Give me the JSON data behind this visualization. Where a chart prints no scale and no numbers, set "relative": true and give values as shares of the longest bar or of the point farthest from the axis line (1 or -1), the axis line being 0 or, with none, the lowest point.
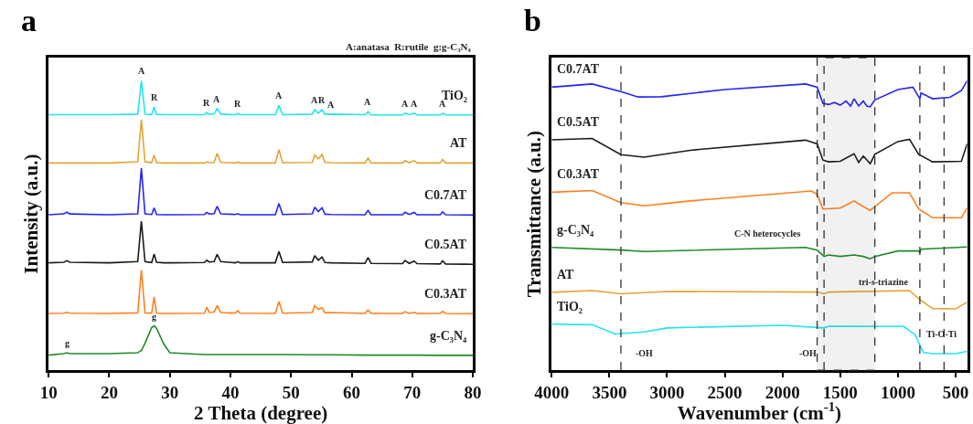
{
  "chart_data": [
    {
      "type": "line",
      "relative": true,
      "tick_labels": "x",
      "xlabel": "2 Theta (degree)",
      "ylabel": "Intensity (a.u.)",
      "xlim": [
        10,
        80
      ],
      "xticks": [
        10,
        20,
        30,
        40,
        50,
        60,
        70,
        80
      ],
      "x": [
        10,
        12.5,
        13,
        13.5,
        20,
        24.7,
        25.3,
        25.9,
        27.0,
        27.4,
        27.8,
        29.0,
        30.0,
        35.7,
        36.1,
        36.5,
        37.3,
        37.8,
        38.4,
        40.8,
        41.2,
        41.6,
        47.4,
        48.0,
        48.6,
        53.5,
        53.9,
        54.5,
        55.1,
        55.6,
        56.6,
        62.2,
        62.7,
        63.2,
        68.4,
        68.8,
        69.5,
        70.3,
        70.8,
        74.6,
        75.0,
        75.5,
        80
      ],
      "series": [
        {
          "name": "TiO₂",
          "color": "#22e6ee",
          "values": [
            0.883,
            0.883,
            0.883,
            0.883,
            0.883,
            0.885,
            1.0,
            0.885,
            0.883,
            0.91,
            0.884,
            0.883,
            0.883,
            0.883,
            0.89,
            0.884,
            0.885,
            0.905,
            0.885,
            0.883,
            0.887,
            0.883,
            0.883,
            0.915,
            0.883,
            0.885,
            0.9,
            0.888,
            0.9,
            0.884,
            0.885,
            0.883,
            0.893,
            0.882,
            0.882,
            0.888,
            0.883,
            0.888,
            0.882,
            0.882,
            0.888,
            0.882,
            0.882
          ]
        },
        {
          "name": "AT",
          "color": "#e3a436",
          "values": [
            0.716,
            0.716,
            0.716,
            0.716,
            0.716,
            0.72,
            0.865,
            0.72,
            0.717,
            0.743,
            0.717,
            0.716,
            0.716,
            0.716,
            0.72,
            0.717,
            0.718,
            0.749,
            0.718,
            0.716,
            0.719,
            0.716,
            0.716,
            0.762,
            0.717,
            0.718,
            0.743,
            0.73,
            0.745,
            0.718,
            0.717,
            0.716,
            0.733,
            0.716,
            0.716,
            0.724,
            0.717,
            0.724,
            0.716,
            0.716,
            0.728,
            0.716,
            0.716
          ]
        },
        {
          "name": "C0.7AT",
          "color": "#2424f5",
          "values": [
            0.537,
            0.54,
            0.546,
            0.54,
            0.537,
            0.54,
            0.698,
            0.54,
            0.538,
            0.561,
            0.538,
            0.537,
            0.537,
            0.538,
            0.545,
            0.54,
            0.541,
            0.566,
            0.54,
            0.538,
            0.541,
            0.537,
            0.537,
            0.576,
            0.538,
            0.54,
            0.563,
            0.548,
            0.561,
            0.539,
            0.538,
            0.537,
            0.552,
            0.537,
            0.537,
            0.546,
            0.538,
            0.545,
            0.537,
            0.537,
            0.547,
            0.537,
            0.536
          ]
        },
        {
          "name": "C0.5AT",
          "color": "#1a1a1a",
          "values": [
            0.371,
            0.373,
            0.378,
            0.373,
            0.371,
            0.375,
            0.515,
            0.375,
            0.372,
            0.401,
            0.373,
            0.371,
            0.371,
            0.372,
            0.38,
            0.374,
            0.375,
            0.4,
            0.375,
            0.371,
            0.375,
            0.371,
            0.371,
            0.41,
            0.372,
            0.374,
            0.396,
            0.38,
            0.391,
            0.372,
            0.371,
            0.369,
            0.389,
            0.369,
            0.368,
            0.379,
            0.369,
            0.377,
            0.368,
            0.367,
            0.378,
            0.367,
            0.366
          ]
        },
        {
          "name": "C0.3AT",
          "color": "#ff7f1e",
          "values": [
            0.196,
            0.197,
            0.2,
            0.197,
            0.196,
            0.198,
            0.346,
            0.198,
            0.197,
            0.253,
            0.197,
            0.196,
            0.196,
            0.197,
            0.217,
            0.2,
            0.201,
            0.223,
            0.199,
            0.197,
            0.205,
            0.197,
            0.196,
            0.237,
            0.197,
            0.199,
            0.223,
            0.21,
            0.216,
            0.198,
            0.199,
            0.196,
            0.208,
            0.196,
            0.196,
            0.202,
            0.196,
            0.2,
            0.196,
            0.196,
            0.203,
            0.196,
            0.195
          ]
        },
        {
          "name": "g-C₃N₄",
          "color": "#1e8c24",
          "values": [
            0.052,
            0.057,
            0.06,
            0.057,
            0.057,
            0.06,
            0.068,
            0.093,
            0.147,
            0.153,
            0.145,
            0.09,
            0.06,
            0.054,
            0.054,
            0.054,
            0.054,
            0.054,
            0.054,
            0.054,
            0.054,
            0.054,
            0.054,
            0.054,
            0.054,
            0.053,
            0.053,
            0.053,
            0.053,
            0.053,
            0.053,
            0.052,
            0.052,
            0.052,
            0.052,
            0.052,
            0.052,
            0.052,
            0.052,
            0.051,
            0.051,
            0.051,
            0.051
          ]
        }
      ],
      "annotations": [
        "a",
        "A:anatasa  R:rutile  g:g-C₃N₄",
        {
          "text": "A",
          "x": 25.3,
          "y": 1.0
        },
        {
          "text": "R",
          "x": 27.4,
          "y": 0.91
        },
        {
          "text": "R",
          "x": 36.1,
          "y": 0.89
        },
        {
          "text": "A",
          "x": 37.8,
          "y": 0.905
        },
        {
          "text": "R",
          "x": 41.2,
          "y": 0.887
        },
        {
          "text": "A",
          "x": 48.0,
          "y": 0.915
        },
        {
          "text": "A",
          "x": 53.9,
          "y": 0.9
        },
        {
          "text": "R",
          "x": 55.1,
          "y": 0.9
        },
        {
          "text": "A",
          "x": 56.6,
          "y": 0.885
        },
        {
          "text": "A",
          "x": 62.7,
          "y": 0.893
        },
        {
          "text": "A",
          "x": 68.8,
          "y": 0.888
        },
        {
          "text": "A",
          "x": 70.3,
          "y": 0.888
        },
        {
          "text": "A",
          "x": 75.0,
          "y": 0.888
        },
        {
          "text": "g",
          "x": 13,
          "y": 0.06
        },
        {
          "text": "g",
          "x": 27.4,
          "y": 0.153
        }
      ]
    },
    {
      "type": "line",
      "relative": true,
      "tick_labels": "x",
      "xlabel": "Wavenumber (cm$^{-1}$)",
      "ylabel": "Transmittance (a.u.)",
      "xlim": [
        4000,
        400
      ],
      "xticks": [
        4000,
        3500,
        3000,
        2500,
        2000,
        1500,
        1000,
        500
      ],
      "series": [
        {
          "name": "C0.7AT",
          "color": "#2424f5",
          "x": [
            4000,
            3650,
            3400,
            3250,
            3050,
            2500,
            1800,
            1700,
            1650,
            1600,
            1550,
            1500,
            1450,
            1410,
            1380,
            1340,
            1300,
            1270,
            1240,
            1200,
            1000,
            870,
            810,
            800,
            700,
            550,
            450,
            400
          ],
          "values": [
            0.978,
            0.989,
            0.963,
            0.944,
            0.945,
            0.97,
            0.989,
            0.978,
            0.922,
            0.918,
            0.925,
            0.916,
            0.93,
            0.913,
            0.938,
            0.913,
            0.93,
            0.913,
            0.91,
            0.934,
            0.97,
            0.978,
            0.938,
            0.958,
            0.938,
            0.943,
            0.966,
            1.0
          ]
        },
        {
          "name": "C0.5AT",
          "color": "#1a1a1a",
          "x": [
            4000,
            3650,
            3400,
            3200,
            2800,
            1800,
            1700,
            1650,
            1600,
            1500,
            1380,
            1340,
            1300,
            1240,
            1200,
            1000,
            900,
            820,
            700,
            450,
            400
          ],
          "values": [
            0.796,
            0.801,
            0.745,
            0.736,
            0.76,
            0.795,
            0.782,
            0.726,
            0.72,
            0.722,
            0.748,
            0.718,
            0.74,
            0.714,
            0.746,
            0.79,
            0.798,
            0.746,
            0.72,
            0.722,
            0.782
          ]
        },
        {
          "name": "C0.3AT",
          "color": "#ff7f1e",
          "x": [
            4000,
            3650,
            3400,
            3200,
            2800,
            1750,
            1700,
            1650,
            1500,
            1380,
            1300,
            1240,
            1200,
            1050,
            900,
            820,
            700,
            450,
            400
          ],
          "values": [
            0.615,
            0.621,
            0.579,
            0.568,
            0.585,
            0.619,
            0.608,
            0.557,
            0.56,
            0.585,
            0.565,
            0.552,
            0.565,
            0.613,
            0.613,
            0.557,
            0.527,
            0.527,
            0.561
          ]
        },
        {
          "name": "g-C₃N₄",
          "color": "#1e8c24",
          "x": [
            4000,
            3400,
            3200,
            1800,
            1700,
            1640,
            1600,
            1500,
            1380,
            1300,
            1240,
            1200,
            1000,
            820,
            810,
            800,
            400
          ],
          "values": [
            0.424,
            0.415,
            0.41,
            0.424,
            0.415,
            0.393,
            0.398,
            0.393,
            0.398,
            0.393,
            0.385,
            0.393,
            0.412,
            0.412,
            0.405,
            0.418,
            0.426
          ]
        },
        {
          "name": "AT",
          "color": "#e3a436",
          "x": [
            4000,
            3650,
            3400,
            3000,
            1700,
            1640,
            1600,
            900,
            800,
            700,
            500,
            400
          ],
          "values": [
            0.269,
            0.275,
            0.264,
            0.272,
            0.27,
            0.264,
            0.27,
            0.275,
            0.241,
            0.213,
            0.212,
            0.235
          ]
        },
        {
          "name": "TiO₂",
          "color": "#22e6ee",
          "x": [
            4000,
            3650,
            3450,
            3200,
            3000,
            2000,
            1640,
            1600,
            950,
            850,
            780,
            700,
            500,
            400
          ],
          "values": [
            0.159,
            0.157,
            0.125,
            0.132,
            0.146,
            0.155,
            0.146,
            0.152,
            0.151,
            0.122,
            0.061,
            0.057,
            0.057,
            0.065
          ]
        }
      ],
      "ref_lines": [
        {
          "axis": "x",
          "value": 3400,
          "color": "#333333",
          "line_style": "dashed"
        },
        {
          "axis": "x",
          "value": 1640,
          "color": "#333333",
          "line_style": "dashed"
        },
        {
          "axis": "x",
          "value": 810,
          "color": "#333333",
          "line_style": "dashed"
        },
        {
          "axis": "x",
          "value": 600,
          "color": "#333333",
          "line_style": "dashed"
        }
      ],
      "bands": [
        {
          "axis": "x",
          "from": 1700,
          "to": 1200,
          "color": "#333333"
        }
      ],
      "annotations": [
        "b",
        {
          "text": "-OH",
          "x": 3200,
          "y": 0.132
        },
        {
          "text": "-OH",
          "x": 1640,
          "y": 0.146
        },
        {
          "text": "C-N heterocycles",
          "x": 1800,
          "y": 0.424
        },
        {
          "text": "tri-s-triazine",
          "x": 900,
          "y": 0.275
        },
        {
          "text": "Ti-O-Ti",
          "x": 700,
          "y": 0.057
        }
      ]
    }
  ]
}
